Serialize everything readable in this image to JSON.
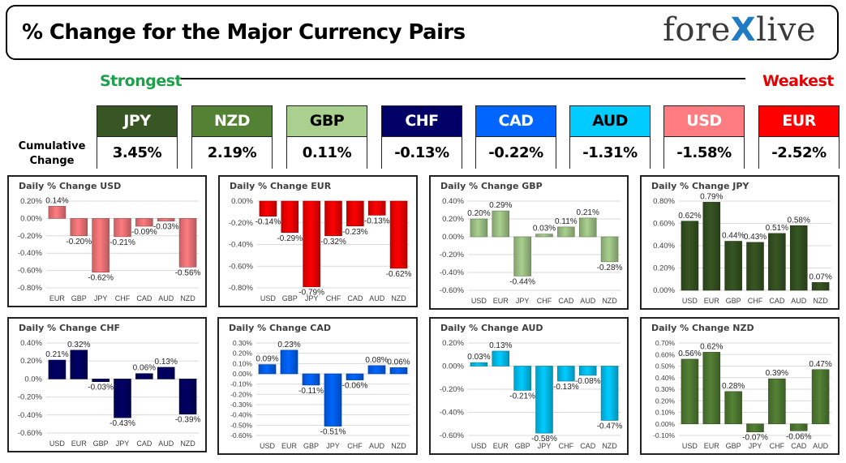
{
  "header": {
    "title": "% Change for the Major Currency Pairs",
    "logo_left": "fore",
    "logo_x": "X",
    "logo_right": "live"
  },
  "scale": {
    "strongest": "Strongest",
    "weakest": "Weakest"
  },
  "cumulative_label": {
    "line1": "Cumulative",
    "line2": "Change"
  },
  "cumulative": [
    {
      "code": "JPY",
      "value": "3.45%",
      "color": "#375623",
      "text": "#ffffff"
    },
    {
      "code": "NZD",
      "value": "2.19%",
      "color": "#548235",
      "text": "#ffffff"
    },
    {
      "code": "GBP",
      "value": "0.11%",
      "color": "#a9d08e",
      "text": "#000000"
    },
    {
      "code": "CHF",
      "value": "-0.13%",
      "color": "#000066",
      "text": "#ffffff"
    },
    {
      "code": "CAD",
      "value": "-0.22%",
      "color": "#0066ff",
      "text": "#ffffff"
    },
    {
      "code": "AUD",
      "value": "-1.31%",
      "color": "#00ccff",
      "text": "#000000"
    },
    {
      "code": "USD",
      "value": "-1.58%",
      "color": "#ff7c80",
      "text": "#ffffff"
    },
    {
      "code": "EUR",
      "value": "-2.52%",
      "color": "#ff0000",
      "text": "#ffffff"
    }
  ],
  "chart_data": [
    {
      "type": "bar",
      "title": "Daily % Change USD",
      "categories": [
        "EUR",
        "GBP",
        "JPY",
        "CHF",
        "CAD",
        "AUD",
        "NZD"
      ],
      "values": [
        0.14,
        -0.2,
        -0.62,
        -0.21,
        -0.09,
        -0.03,
        -0.56
      ],
      "labels": [
        "0.14%",
        "-0.20%",
        "-0.62%",
        "-0.21%",
        "-0.09%",
        "-0.03%",
        "-0.56%"
      ],
      "ylim": [
        -0.8,
        0.2
      ],
      "ticks": [
        "0.20%",
        "0.00%",
        "-0.20%",
        "-0.40%",
        "-0.60%",
        "-0.80%"
      ],
      "tick_values": [
        0.2,
        0,
        -0.2,
        -0.4,
        -0.6,
        -0.8
      ],
      "color": "#ff7c80",
      "grid": true
    },
    {
      "type": "bar",
      "title": "Daily % Change EUR",
      "categories": [
        "USD",
        "GBP",
        "JPY",
        "CHF",
        "CAD",
        "AUD",
        "NZD"
      ],
      "values": [
        -0.14,
        -0.29,
        -0.79,
        -0.32,
        -0.23,
        -0.13,
        -0.62
      ],
      "labels": [
        "-0.14%",
        "-0.29%",
        "-0.79%",
        "-0.32%",
        "-0.23%",
        "-0.13%",
        "-0.62%"
      ],
      "ylim": [
        -0.8,
        0
      ],
      "ticks": [
        "0.00%",
        "-0.20%",
        "-0.40%",
        "-0.60%",
        "-0.80%"
      ],
      "tick_values": [
        0,
        -0.2,
        -0.4,
        -0.6,
        -0.8
      ],
      "color": "#ff0000",
      "grid": true
    },
    {
      "type": "bar",
      "title": "Daily % Change GBP",
      "categories": [
        "USD",
        "EUR",
        "JPY",
        "CHF",
        "CAD",
        "AUD",
        "NZD"
      ],
      "values": [
        0.2,
        0.29,
        -0.44,
        0.03,
        0.11,
        0.21,
        -0.28
      ],
      "labels": [
        "0.20%",
        "0.29%",
        "-0.44%",
        "0.03%",
        "0.11%",
        "0.21%",
        "-0.28%"
      ],
      "ylim": [
        -0.6,
        0.4
      ],
      "ticks": [
        "0.40%",
        "0.20%",
        "0.00%",
        "-0.20%",
        "-0.40%",
        "-0.60%"
      ],
      "tick_values": [
        0.4,
        0.2,
        0,
        -0.2,
        -0.4,
        -0.6
      ],
      "color": "#a9d08e",
      "grid": true
    },
    {
      "type": "bar",
      "title": "Daily % Change JPY",
      "categories": [
        "USD",
        "EUR",
        "GBP",
        "CHF",
        "CAD",
        "AUD",
        "NZD"
      ],
      "values": [
        0.62,
        0.79,
        0.44,
        0.43,
        0.51,
        0.58,
        0.07
      ],
      "labels": [
        "0.62%",
        "0.79%",
        "0.44%",
        "0.43%",
        "0.51%",
        "0.58%",
        "0.07%"
      ],
      "ylim": [
        0,
        0.8
      ],
      "ticks": [
        "0.80%",
        "0.60%",
        "0.40%",
        "0.20%",
        "0.00%"
      ],
      "tick_values": [
        0.8,
        0.6,
        0.4,
        0.2,
        0
      ],
      "color": "#375623",
      "grid": true
    },
    {
      "type": "bar",
      "title": "Daily % Change CHF",
      "categories": [
        "USD",
        "EUR",
        "GBP",
        "JPY",
        "CAD",
        "AUD",
        "NZD"
      ],
      "values": [
        0.21,
        0.32,
        -0.03,
        -0.43,
        0.06,
        0.13,
        -0.39
      ],
      "labels": [
        "0.21%",
        "0.32%",
        "-0.03%",
        "-0.43%",
        "0.06%",
        "0.13%",
        "-0.39%"
      ],
      "ylim": [
        -0.6,
        0.4
      ],
      "ticks": [
        "0.40%",
        "0.20%",
        "0.0%",
        "-0.20%",
        "-0.40%",
        "-0.60%"
      ],
      "tick_values": [
        0.4,
        0.2,
        0,
        -0.2,
        -0.4,
        -0.6
      ],
      "color": "#000066",
      "grid": true
    },
    {
      "type": "bar",
      "title": "Daily % Change CAD",
      "categories": [
        "USD",
        "EUR",
        "GBP",
        "JPY",
        "CHF",
        "AUD",
        "NZD"
      ],
      "values": [
        0.09,
        0.23,
        -0.11,
        -0.51,
        -0.06,
        0.08,
        0.06
      ],
      "labels": [
        "0.09%",
        "0.23%",
        "-0.11%",
        "-0.51%",
        "-0.06%",
        "0.08%",
        "0.06%"
      ],
      "ylim": [
        -0.6,
        0.3
      ],
      "ticks": [
        "0.30%",
        "0.20%",
        "0.10%",
        "0.00%",
        "-0.10%",
        "-0.20%",
        "-0.30%",
        "-0.40%",
        "-0.50%",
        "-0.60%"
      ],
      "tick_values": [
        0.3,
        0.2,
        0.1,
        0,
        -0.1,
        -0.2,
        -0.3,
        -0.4,
        -0.5,
        -0.6
      ],
      "color": "#0066ff",
      "grid": true
    },
    {
      "type": "bar",
      "title": "Daily % Change AUD",
      "categories": [
        "USD",
        "EUR",
        "GBP",
        "JPY",
        "CHF",
        "CAD",
        "NZD"
      ],
      "values": [
        0.03,
        0.13,
        -0.21,
        -0.58,
        -0.13,
        -0.08,
        -0.47
      ],
      "labels": [
        "0.03%",
        "0.13%",
        "-0.21%",
        "-0.58%",
        "-0.13%",
        "-0.08%",
        "-0.47%"
      ],
      "ylim": [
        -0.6,
        0.2
      ],
      "ticks": [
        "0.20%",
        "0.00%",
        "-0.20%",
        "-0.40%",
        "-0.60%"
      ],
      "tick_values": [
        0.2,
        0,
        -0.2,
        -0.4,
        -0.6
      ],
      "color": "#00ccff",
      "grid": true
    },
    {
      "type": "bar",
      "title": "Daily % Change NZD",
      "categories": [
        "USD",
        "EUR",
        "GBP",
        "JPY",
        "CHF",
        "CAD",
        "AUD"
      ],
      "values": [
        0.56,
        0.62,
        0.28,
        -0.07,
        0.39,
        -0.06,
        0.47
      ],
      "labels": [
        "0.56%",
        "0.62%",
        "0.28%",
        "-0.07%",
        "0.39%",
        "-0.06%",
        "0.47%"
      ],
      "ylim": [
        -0.1,
        0.7
      ],
      "ticks": [
        "0.70%",
        "0.60%",
        "0.50%",
        "0.40%",
        "0.30%",
        "0.20%",
        "0.10%",
        "0.00%",
        "-0.10%"
      ],
      "tick_values": [
        0.7,
        0.6,
        0.5,
        0.4,
        0.3,
        0.2,
        0.1,
        0,
        -0.1
      ],
      "color": "#548235",
      "grid": true
    }
  ]
}
